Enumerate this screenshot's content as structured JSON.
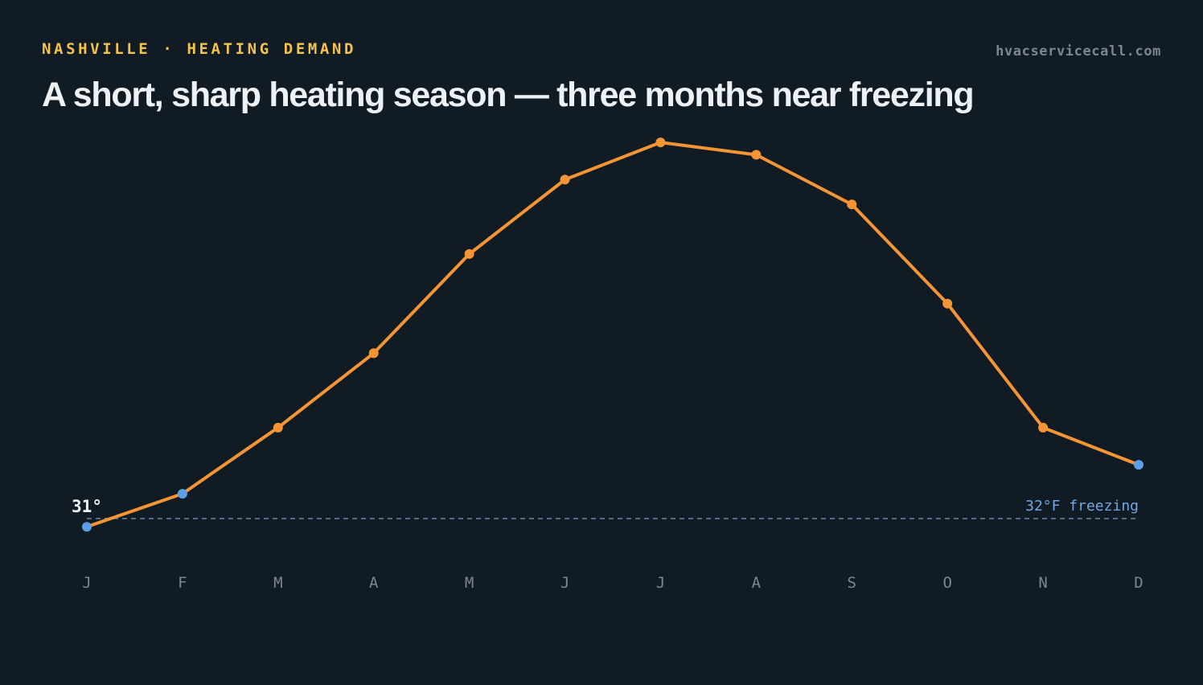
{
  "header": {
    "eyebrow": "NASHVILLE · HEATING DEMAND",
    "site": "hvacservicecall.com",
    "title": "A short, sharp heating season — three months near freezing"
  },
  "chart_data": {
    "type": "line",
    "title": "A short, sharp heating season — three months near freezing",
    "xlabel": "",
    "ylabel": "",
    "categories": [
      "J",
      "F",
      "M",
      "A",
      "M",
      "J",
      "J",
      "A",
      "S",
      "O",
      "N",
      "D"
    ],
    "series": [
      {
        "values": [
          31,
          35,
          43,
          52,
          64,
          73,
          77.5,
          76,
          70,
          58,
          43,
          38.5
        ],
        "color": "#f49535",
        "near_freezing_color": "#5b9ee9",
        "near_freezing_months": [
          0,
          1,
          11
        ]
      }
    ],
    "ylim": [
      14,
      85
    ],
    "reference_line": {
      "value": 32,
      "label": "32°F freezing",
      "color": "#6fa8e4",
      "style": "dashed"
    },
    "start_label": "31°",
    "grid": false,
    "legend": "none"
  },
  "colors": {
    "background": "#111b23",
    "accent": "#f2c14e",
    "line": "#f49535",
    "cold_marker": "#5b9ee9",
    "reference": "#6fa8e4",
    "muted_text": "#7d868e"
  }
}
